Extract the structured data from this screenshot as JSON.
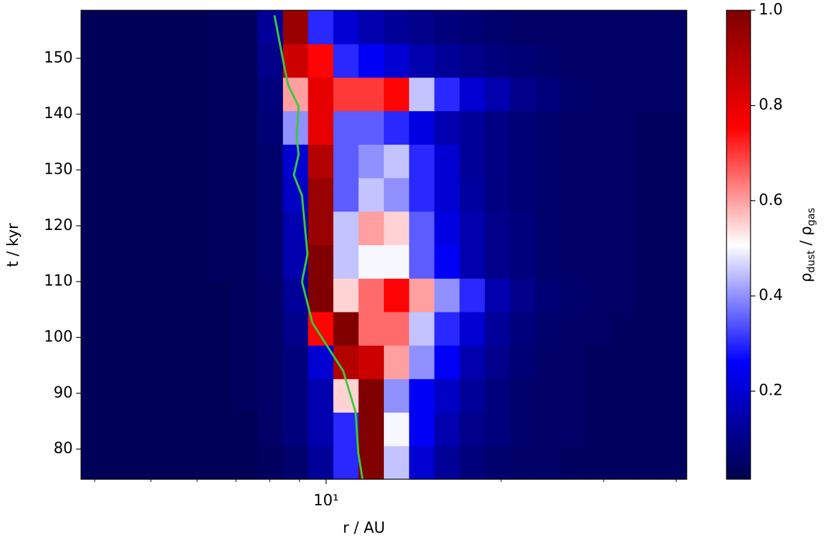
{
  "chart_data": {
    "type": "heatmap",
    "x_label": "r / AU",
    "y_label": "t / kyr",
    "colorbar_label": [
      "ρ",
      "dust",
      " / ρ",
      "gas"
    ],
    "x_scale": "log",
    "xlim": [
      3.79,
      41.68
    ],
    "xticks": [
      {
        "value": 10,
        "label": "10¹"
      }
    ],
    "xminorticks": [
      4,
      5,
      6,
      7,
      8,
      9,
      20,
      30,
      40
    ],
    "ylim": [
      74.6,
      158.6
    ],
    "yticks": [
      80,
      90,
      100,
      110,
      120,
      130,
      140,
      150
    ],
    "colormap": "seismic",
    "clim": [
      0.015,
      1.0
    ],
    "cticks": [
      0.2,
      0.4,
      0.6,
      0.8,
      {
        "value": 1.0,
        "label": "1.0"
      }
    ],
    "x_edges": [
      3.79,
      4.19,
      4.63,
      5.11,
      5.65,
      6.25,
      6.9,
      7.62,
      8.43,
      9.31,
      10.29,
      11.37,
      12.57,
      13.89,
      15.35,
      16.96,
      18.74,
      20.72,
      22.89,
      25.29,
      27.95,
      30.89,
      34.13,
      37.72,
      41.68
    ],
    "y_edges": [
      74.6,
      80.6,
      86.6,
      92.6,
      98.6,
      104.6,
      110.6,
      116.6,
      122.6,
      128.6,
      134.6,
      140.6,
      146.6,
      152.6,
      158.6
    ],
    "z": [
      [
        0.03,
        0.03,
        0.03,
        0.03,
        0.03,
        0.03,
        0.03,
        0.04,
        0.06,
        0.12,
        0.3,
        1.0,
        0.45,
        0.2,
        0.12,
        0.08,
        0.06,
        0.05,
        0.05,
        0.04,
        0.04,
        0.04,
        0.04,
        0.04
      ],
      [
        0.03,
        0.03,
        0.03,
        0.03,
        0.03,
        0.03,
        0.03,
        0.05,
        0.08,
        0.15,
        0.3,
        1.0,
        0.5,
        0.25,
        0.15,
        0.1,
        0.08,
        0.06,
        0.05,
        0.05,
        0.04,
        0.04,
        0.04,
        0.04
      ],
      [
        0.03,
        0.03,
        0.03,
        0.03,
        0.03,
        0.03,
        0.04,
        0.05,
        0.08,
        0.15,
        0.55,
        1.0,
        0.4,
        0.25,
        0.18,
        0.12,
        0.08,
        0.06,
        0.05,
        0.05,
        0.04,
        0.04,
        0.04,
        0.04
      ],
      [
        0.03,
        0.03,
        0.03,
        0.03,
        0.03,
        0.03,
        0.04,
        0.05,
        0.08,
        0.2,
        0.9,
        0.85,
        0.6,
        0.4,
        0.25,
        0.15,
        0.1,
        0.07,
        0.05,
        0.05,
        0.04,
        0.04,
        0.04,
        0.04
      ],
      [
        0.03,
        0.03,
        0.03,
        0.03,
        0.03,
        0.03,
        0.04,
        0.05,
        0.1,
        0.75,
        1.0,
        0.65,
        0.65,
        0.45,
        0.3,
        0.2,
        0.12,
        0.08,
        0.06,
        0.05,
        0.05,
        0.04,
        0.04,
        0.04
      ],
      [
        0.03,
        0.03,
        0.03,
        0.03,
        0.03,
        0.03,
        0.04,
        0.05,
        0.12,
        1.0,
        0.55,
        0.65,
        0.75,
        0.6,
        0.4,
        0.3,
        0.15,
        0.1,
        0.07,
        0.06,
        0.05,
        0.05,
        0.04,
        0.04
      ],
      [
        0.03,
        0.03,
        0.03,
        0.03,
        0.03,
        0.04,
        0.04,
        0.06,
        0.15,
        1.0,
        0.45,
        0.5,
        0.5,
        0.35,
        0.25,
        0.15,
        0.1,
        0.08,
        0.06,
        0.05,
        0.05,
        0.05,
        0.04,
        0.04
      ],
      [
        0.03,
        0.03,
        0.03,
        0.03,
        0.03,
        0.04,
        0.04,
        0.06,
        0.15,
        0.95,
        0.45,
        0.6,
        0.55,
        0.35,
        0.22,
        0.15,
        0.1,
        0.08,
        0.06,
        0.05,
        0.05,
        0.05,
        0.04,
        0.04
      ],
      [
        0.03,
        0.03,
        0.03,
        0.03,
        0.03,
        0.04,
        0.04,
        0.06,
        0.18,
        0.95,
        0.35,
        0.45,
        0.4,
        0.3,
        0.2,
        0.13,
        0.09,
        0.07,
        0.06,
        0.05,
        0.05,
        0.05,
        0.04,
        0.04
      ],
      [
        0.03,
        0.03,
        0.03,
        0.03,
        0.03,
        0.04,
        0.04,
        0.06,
        0.2,
        0.9,
        0.35,
        0.4,
        0.45,
        0.3,
        0.2,
        0.12,
        0.09,
        0.07,
        0.06,
        0.05,
        0.05,
        0.05,
        0.04,
        0.04
      ],
      [
        0.03,
        0.03,
        0.03,
        0.03,
        0.03,
        0.04,
        0.04,
        0.07,
        0.4,
        0.8,
        0.35,
        0.35,
        0.3,
        0.22,
        0.15,
        0.12,
        0.09,
        0.07,
        0.06,
        0.05,
        0.05,
        0.05,
        0.04,
        0.04
      ],
      [
        0.03,
        0.03,
        0.03,
        0.03,
        0.03,
        0.04,
        0.04,
        0.08,
        0.6,
        0.8,
        0.7,
        0.7,
        0.75,
        0.45,
        0.3,
        0.2,
        0.15,
        0.1,
        0.08,
        0.06,
        0.05,
        0.05,
        0.05,
        0.05
      ],
      [
        0.03,
        0.03,
        0.03,
        0.03,
        0.03,
        0.04,
        0.04,
        0.1,
        0.85,
        0.75,
        0.3,
        0.25,
        0.2,
        0.15,
        0.12,
        0.1,
        0.08,
        0.07,
        0.06,
        0.05,
        0.05,
        0.05,
        0.05,
        0.05
      ],
      [
        0.03,
        0.03,
        0.03,
        0.03,
        0.03,
        0.04,
        0.04,
        0.12,
        0.95,
        0.3,
        0.2,
        0.15,
        0.12,
        0.1,
        0.08,
        0.07,
        0.06,
        0.05,
        0.05,
        0.05,
        0.05,
        0.05,
        0.05,
        0.05
      ]
    ],
    "line": {
      "color": "#3cc83c",
      "x": [
        8.15,
        8.27,
        8.49,
        8.61,
        8.97,
        8.9,
        8.97,
        8.8,
        9.09,
        9.29,
        9.09,
        9.47,
        10.7,
        11.24,
        11.36,
        11.55
      ],
      "y": [
        157.7,
        154.3,
        148.1,
        145.1,
        141.4,
        135.8,
        132.8,
        129.1,
        125.4,
        114.9,
        110.0,
        102.6,
        94.0,
        86.6,
        79.3,
        74.6
      ]
    }
  }
}
